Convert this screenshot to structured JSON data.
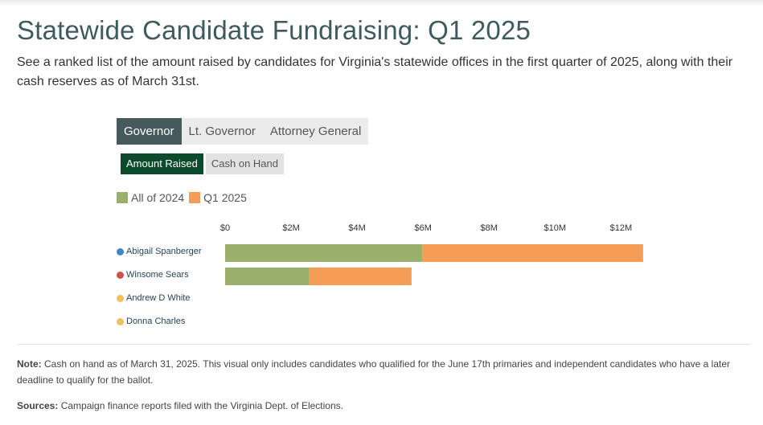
{
  "title": "Statewide Candidate Fundraising: Q1 2025",
  "subtitle": "See a ranked list of the amount raised by candidates for Virginia's statewide offices in the first quarter of 2025, along with their cash reserves as of March 31st.",
  "tabs": [
    {
      "label": "Governor",
      "active": true
    },
    {
      "label": "Lt. Governor",
      "active": false
    },
    {
      "label": "Attorney General",
      "active": false
    }
  ],
  "toggles": [
    {
      "label": "Amount Raised",
      "active": true
    },
    {
      "label": "Cash on Hand",
      "active": false
    }
  ],
  "colors": {
    "series_2024": "#9aaf6b",
    "series_q1": "#f59c57",
    "dem": "#3e86c9",
    "rep": "#d14f4b",
    "ind": "#f2bf58"
  },
  "chart_data": {
    "type": "bar",
    "orientation": "horizontal",
    "stacked": true,
    "categories": [
      "Abigail Spanberger",
      "Winsome Sears",
      "Andrew D White",
      "Donna Charles"
    ],
    "party_colors": [
      "#3e86c9",
      "#d14f4b",
      "#f2bf58",
      "#f2bf58"
    ],
    "series": [
      {
        "name": "All of 2024",
        "color": "#9aaf6b",
        "values": [
          5.97,
          2.55,
          0,
          0
        ]
      },
      {
        "name": "Q1 2025",
        "color": "#f59c57",
        "values": [
          6.7,
          3.1,
          0,
          0
        ]
      }
    ],
    "xlim": [
      0,
      12.6
    ],
    "xticks": [
      0,
      2,
      4,
      6,
      8,
      10,
      12
    ],
    "xtick_labels": [
      "$0",
      "$2M",
      "$4M",
      "$6M",
      "$8M",
      "$10M",
      "$12M"
    ],
    "x_unit": "millions USD",
    "legend_position": "top-left",
    "grid": false
  },
  "note_label": "Note:",
  "note_text": " Cash on hand as of March 31, 2025. This visual only includes candidates who qualified for the June 17th primaries and independent candidates who have a later deadline to qualify for the ballot.",
  "sources_label": "Sources:",
  "sources_text": " Campaign finance reports filed with the Virginia Dept. of Elections."
}
